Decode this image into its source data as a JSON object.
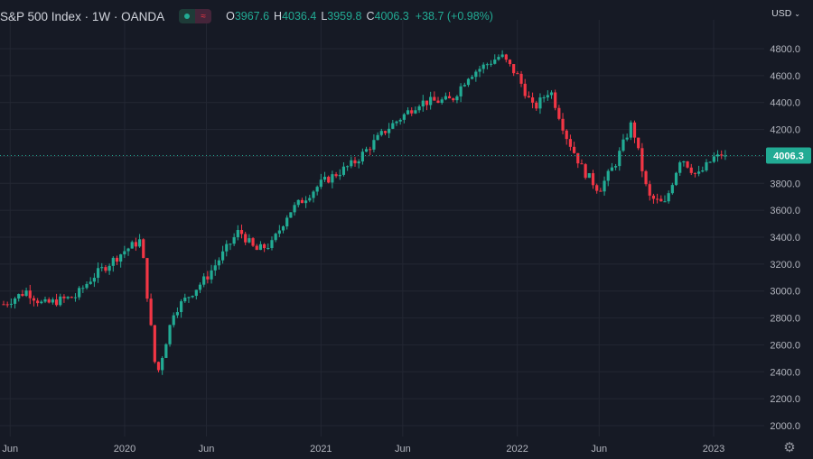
{
  "header": {
    "title": "S&P 500 Index · 1W · OANDA",
    "ohlc": {
      "o_label": "O",
      "o": "3967.6",
      "h_label": "H",
      "h": "4036.4",
      "l_label": "L",
      "l": "3959.8",
      "c_label": "C",
      "c": "4006.3",
      "change": "+38.7 (+0.98%)"
    },
    "wave_icon": "≈"
  },
  "currency": {
    "label": "USD",
    "caret": "⌄"
  },
  "settings_icon": "⚙",
  "colors": {
    "up": "#22ab94",
    "down": "#f23645",
    "background": "#161a25",
    "grid": "#232733",
    "price_label_bg": "#22ab94"
  },
  "chart_data": {
    "type": "candlestick",
    "title": "S&P 500 Index",
    "interval": "1W",
    "source": "OANDA",
    "y_range": [
      1900,
      4900
    ],
    "y_ticks": [
      2000,
      2200,
      2400,
      2600,
      2800,
      3000,
      3200,
      3400,
      3600,
      3800,
      4000,
      4200,
      4400,
      4600,
      4800
    ],
    "y_tick_labels": [
      "2000.0",
      "2200.0",
      "2400.0",
      "2600.0",
      "2800.0",
      "3000.0",
      "3200.0",
      "3400.0",
      "3600.0",
      "3800.0",
      "4000.0",
      "4200.0",
      "4400.0",
      "4600.0",
      "4800.0"
    ],
    "x_ticks": [
      {
        "label": "Jun",
        "date": "2019-06"
      },
      {
        "label": "2020",
        "date": "2020-01"
      },
      {
        "label": "Jun",
        "date": "2020-06"
      },
      {
        "label": "2021",
        "date": "2021-01"
      },
      {
        "label": "Jun",
        "date": "2021-06"
      },
      {
        "label": "2022",
        "date": "2022-01"
      },
      {
        "label": "Jun",
        "date": "2022-06"
      },
      {
        "label": "2023",
        "date": "2023-01"
      }
    ],
    "x_range": [
      "2019-05",
      "2023-03"
    ],
    "last_price": 4006.3,
    "last_price_label": "4006.3",
    "weekly_close_anchors": [
      [
        "2019-05",
        2860
      ],
      [
        "2019-07",
        3000
      ],
      [
        "2019-08",
        2900
      ],
      [
        "2019-10",
        2960
      ],
      [
        "2019-11",
        3100
      ],
      [
        "2020-01",
        3300
      ],
      [
        "2020-02",
        3380
      ],
      [
        "2020-03",
        2300
      ],
      [
        "2020-03",
        2380
      ],
      [
        "2020-04",
        2850
      ],
      [
        "2020-06",
        3100
      ],
      [
        "2020-08",
        3450
      ],
      [
        "2020-09",
        3300
      ],
      [
        "2020-10",
        3350
      ],
      [
        "2020-11",
        3580
      ],
      [
        "2021-01",
        3800
      ],
      [
        "2021-03",
        3950
      ],
      [
        "2021-05",
        4200
      ],
      [
        "2021-07",
        4400
      ],
      [
        "2021-09",
        4420
      ],
      [
        "2021-10",
        4600
      ],
      [
        "2021-12",
        4750
      ],
      [
        "2022-01",
        4600
      ],
      [
        "2022-02",
        4350
      ],
      [
        "2022-03",
        4500
      ],
      [
        "2022-04",
        4150
      ],
      [
        "2022-05",
        3900
      ],
      [
        "2022-06",
        3750
      ],
      [
        "2022-07",
        3950
      ],
      [
        "2022-08",
        4250
      ],
      [
        "2022-09",
        3700
      ],
      [
        "2022-10",
        3640
      ],
      [
        "2022-11",
        4000
      ],
      [
        "2022-12",
        3850
      ],
      [
        "2023-01",
        3990
      ],
      [
        "2023-02",
        4006
      ]
    ]
  }
}
